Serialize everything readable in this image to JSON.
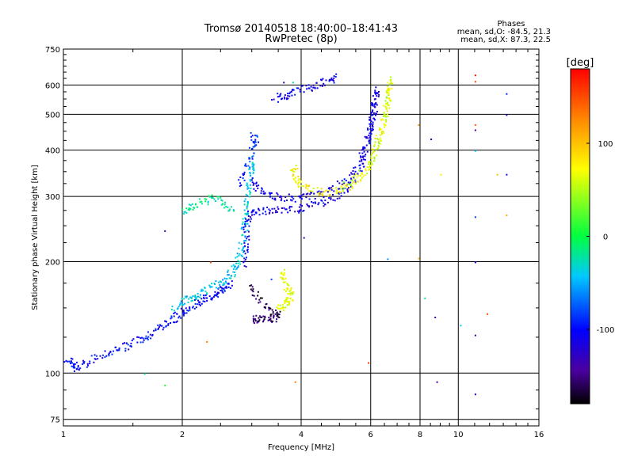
{
  "chart_data": {
    "type": "scatter",
    "title": "Tromsø 20140518 18:40:00–18:41:43",
    "subtitle": "RwPretec (8p)",
    "xlabel": "Frequency [MHz]",
    "ylabel": "Stationary phase Virtual Height [km]",
    "x_scale": "log",
    "y_scale": "log",
    "xlim": [
      1,
      16
    ],
    "ylim": [
      72,
      750
    ],
    "x_ticks": [
      1,
      2,
      4,
      6,
      8,
      10,
      16
    ],
    "x_tick_labels": [
      "1",
      "2",
      "4",
      "6",
      "8",
      "10",
      "16"
    ],
    "y_ticks": [
      75,
      100,
      200,
      300,
      400,
      500,
      600,
      750
    ],
    "y_tick_labels": [
      "75",
      "100",
      "200",
      "300",
      "400",
      "500",
      "600",
      "750"
    ],
    "grid": true,
    "legend": {
      "heading": "Phases",
      "line1": "mean, sd,O: -84.5, 21.3",
      "line2": "mean, sd,X:  87.3, 22.5",
      "position": "top-right"
    },
    "colorbar": {
      "label": "[deg]",
      "range": [
        -180,
        180
      ],
      "ticks": [
        100,
        0,
        -100
      ],
      "tick_labels": [
        "100",
        "0",
        "-100"
      ]
    },
    "traces": [
      {
        "name": "",
        "phase": -100,
        "points": [
          [
            1.02,
            110
          ],
          [
            1.05,
            106
          ],
          [
            1.08,
            103
          ],
          [
            1.15,
            108
          ],
          [
            1.25,
            113
          ],
          [
            1.35,
            116
          ],
          [
            1.45,
            119
          ],
          [
            1.55,
            123
          ],
          [
            1.65,
            128
          ],
          [
            1.75,
            133
          ],
          [
            1.85,
            139
          ],
          [
            1.95,
            144
          ],
          [
            2.05,
            149
          ],
          [
            2.15,
            154
          ],
          [
            2.25,
            158
          ],
          [
            2.35,
            162
          ],
          [
            2.45,
            166
          ],
          [
            2.55,
            171
          ],
          [
            2.65,
            176
          ]
        ]
      },
      {
        "name": "",
        "phase": -40,
        "points": [
          [
            1.9,
            150
          ],
          [
            2.0,
            156
          ],
          [
            2.1,
            160
          ],
          [
            2.2,
            164
          ],
          [
            2.35,
            170
          ],
          [
            2.5,
            176
          ],
          [
            2.6,
            182
          ],
          [
            2.7,
            190
          ],
          [
            2.75,
            200
          ],
          [
            2.8,
            215
          ],
          [
            2.85,
            235
          ],
          [
            2.88,
            260
          ],
          [
            2.9,
            280
          ],
          [
            2.92,
            305
          ],
          [
            2.95,
            330
          ],
          [
            2.98,
            360
          ],
          [
            3.0,
            380
          ]
        ]
      },
      {
        "name": "",
        "phase": -110,
        "points": [
          [
            2.85,
            195
          ],
          [
            2.88,
            220
          ],
          [
            2.9,
            250
          ],
          [
            2.95,
            270
          ],
          [
            3.1,
            276
          ],
          [
            3.3,
            275
          ],
          [
            3.6,
            276
          ],
          [
            3.9,
            279
          ],
          [
            4.2,
            283
          ],
          [
            4.6,
            292
          ],
          [
            5.0,
            305
          ],
          [
            5.3,
            325
          ],
          [
            5.6,
            360
          ],
          [
            5.8,
            400
          ],
          [
            5.95,
            450
          ],
          [
            6.05,
            500
          ],
          [
            6.1,
            550
          ]
        ]
      },
      {
        "name": "",
        "phase": -110,
        "points": [
          [
            3.0,
            330
          ],
          [
            3.1,
            318
          ],
          [
            3.3,
            305
          ],
          [
            3.55,
            300
          ],
          [
            3.8,
            298
          ],
          [
            4.1,
            300
          ],
          [
            4.5,
            306
          ],
          [
            4.9,
            318
          ],
          [
            5.3,
            340
          ],
          [
            5.6,
            375
          ],
          [
            5.85,
            420
          ],
          [
            6.0,
            470
          ],
          [
            6.1,
            520
          ],
          [
            6.15,
            560
          ],
          [
            6.2,
            590
          ]
        ]
      },
      {
        "name": "",
        "phase": -160,
        "points": [
          [
            3.0,
            140
          ],
          [
            3.1,
            141
          ],
          [
            3.25,
            142
          ],
          [
            3.4,
            141
          ],
          [
            3.5,
            145
          ],
          [
            3.3,
            150
          ],
          [
            3.1,
            160
          ],
          [
            2.95,
            175
          ]
        ]
      },
      {
        "name": "",
        "phase": 65,
        "points": [
          [
            3.5,
            150
          ],
          [
            3.6,
            153
          ],
          [
            3.7,
            158
          ],
          [
            3.75,
            163
          ],
          [
            3.7,
            170
          ],
          [
            3.6,
            180
          ],
          [
            3.55,
            190
          ]
        ]
      },
      {
        "name": "",
        "phase": 75,
        "points": [
          [
            3.8,
            365
          ],
          [
            3.85,
            340
          ],
          [
            3.95,
            325
          ],
          [
            4.2,
            315
          ],
          [
            4.6,
            309
          ],
          [
            5.0,
            311
          ],
          [
            5.4,
            325
          ],
          [
            5.8,
            350
          ],
          [
            6.1,
            390
          ],
          [
            6.3,
            440
          ],
          [
            6.5,
            500
          ],
          [
            6.6,
            560
          ],
          [
            6.7,
            610
          ]
        ]
      },
      {
        "name": "",
        "phase": 55,
        "points": [
          [
            5.0,
            315
          ],
          [
            5.5,
            335
          ],
          [
            5.9,
            365
          ],
          [
            6.2,
            410
          ],
          [
            6.4,
            460
          ],
          [
            6.55,
            520
          ],
          [
            6.65,
            580
          ],
          [
            6.7,
            630
          ]
        ]
      },
      {
        "name": "",
        "phase": -110,
        "points": [
          [
            3.4,
            555
          ],
          [
            3.6,
            560
          ],
          [
            3.8,
            573
          ],
          [
            4.1,
            590
          ],
          [
            4.4,
            605
          ],
          [
            4.7,
            620
          ],
          [
            4.9,
            635
          ]
        ]
      },
      {
        "name": "",
        "phase": -20,
        "points": [
          [
            2.0,
            272
          ],
          [
            2.1,
            282
          ],
          [
            2.25,
            292
          ],
          [
            2.4,
            300
          ],
          [
            2.55,
            290
          ],
          [
            2.7,
            275
          ]
        ]
      },
      {
        "name": "",
        "phase": -90,
        "points": [
          [
            2.8,
            320
          ],
          [
            2.9,
            360
          ],
          [
            3.0,
            400
          ],
          [
            3.05,
            430
          ],
          [
            3.0,
            440
          ]
        ]
      }
    ],
    "scattered": [
      {
        "x": 1.6,
        "y": 100,
        "phase": -20
      },
      {
        "x": 1.8,
        "y": 93,
        "phase": 10
      },
      {
        "x": 1.8,
        "y": 243,
        "phase": -140
      },
      {
        "x": 2.3,
        "y": 122,
        "phase": 130
      },
      {
        "x": 2.35,
        "y": 200,
        "phase": 150
      },
      {
        "x": 3.35,
        "y": 180,
        "phase": -80
      },
      {
        "x": 3.6,
        "y": 612,
        "phase": -140
      },
      {
        "x": 3.8,
        "y": 612,
        "phase": -20
      },
      {
        "x": 3.85,
        "y": 95,
        "phase": 130
      },
      {
        "x": 4.05,
        "y": 233,
        "phase": -140
      },
      {
        "x": 5.9,
        "y": 107,
        "phase": 160
      },
      {
        "x": 6.6,
        "y": 204,
        "phase": -60
      },
      {
        "x": 7.9,
        "y": 205,
        "phase": 100
      },
      {
        "x": 7.9,
        "y": 470,
        "phase": 120
      },
      {
        "x": 8.2,
        "y": 160,
        "phase": -20
      },
      {
        "x": 8.5,
        "y": 430,
        "phase": -120
      },
      {
        "x": 8.7,
        "y": 142,
        "phase": -140
      },
      {
        "x": 8.8,
        "y": 95,
        "phase": -140
      },
      {
        "x": 9.0,
        "y": 345,
        "phase": 80
      },
      {
        "x": 10.1,
        "y": 135,
        "phase": -40
      },
      {
        "x": 11.0,
        "y": 640,
        "phase": 170
      },
      {
        "x": 11.0,
        "y": 615,
        "phase": 150
      },
      {
        "x": 11.0,
        "y": 470,
        "phase": 140
      },
      {
        "x": 11.0,
        "y": 455,
        "phase": -140
      },
      {
        "x": 11.0,
        "y": 400,
        "phase": -40
      },
      {
        "x": 11.0,
        "y": 265,
        "phase": -80
      },
      {
        "x": 11.0,
        "y": 200,
        "phase": -110
      },
      {
        "x": 11.0,
        "y": 127,
        "phase": -150
      },
      {
        "x": 11.0,
        "y": 88,
        "phase": -120
      },
      {
        "x": 11.8,
        "y": 145,
        "phase": 150
      },
      {
        "x": 12.5,
        "y": 345,
        "phase": 100
      },
      {
        "x": 13.2,
        "y": 570,
        "phase": -90
      },
      {
        "x": 13.2,
        "y": 500,
        "phase": -130
      },
      {
        "x": 13.2,
        "y": 345,
        "phase": -120
      },
      {
        "x": 13.2,
        "y": 268,
        "phase": 110
      }
    ]
  }
}
